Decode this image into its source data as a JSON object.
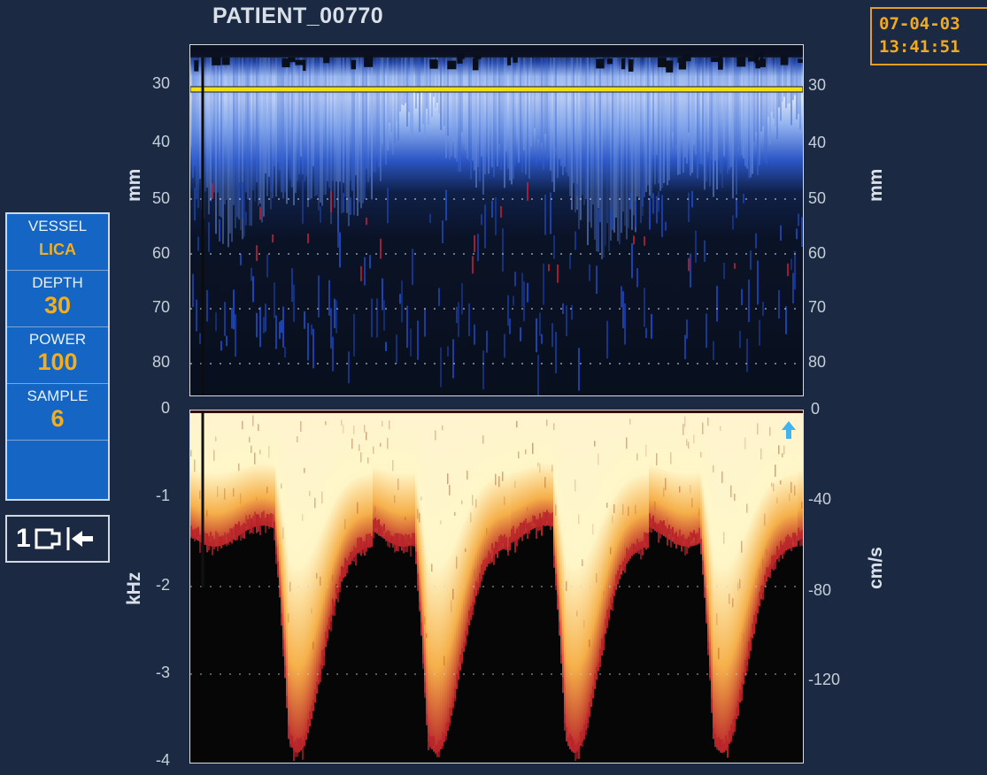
{
  "header": {
    "patient_id": "PATIENT_00770",
    "date": "07-04-03",
    "time": "13:41:51"
  },
  "mmode": {
    "ticks_left": [
      "30",
      "40",
      "50",
      "60",
      "70",
      "80"
    ],
    "ticks_right": [
      "30",
      "40",
      "50",
      "60",
      "70",
      "80"
    ],
    "axis_label_left": "mm",
    "axis_label_right": "mm",
    "gate_depth_mm": 30,
    "colors": {
      "flow_toward": "#b9cff5",
      "flow_away": "#c4203a",
      "gate_line": "#f3e012"
    }
  },
  "spectrogram": {
    "ticks_left": [
      "0",
      "-1",
      "-2",
      "-3",
      "-4"
    ],
    "ticks_right": [
      "0",
      "-40",
      "-80",
      "-120"
    ],
    "axis_label_left": "kHz",
    "axis_label_right": "cm/s",
    "direction_icon": "up-arrow-icon",
    "colors": {
      "core": "#fff6c8",
      "mid": "#f6b04a",
      "edge": "#b8242a"
    }
  },
  "sidebar": {
    "vessel_label": "VESSEL",
    "vessel_value": "LICA",
    "depth_label": "DEPTH",
    "depth_value": "30",
    "power_label": "POWER",
    "power_value": "100",
    "sample_label": "SAMPLE",
    "sample_value": "6"
  },
  "probe": {
    "number": "1",
    "icon": "probe-connector-icon"
  }
}
